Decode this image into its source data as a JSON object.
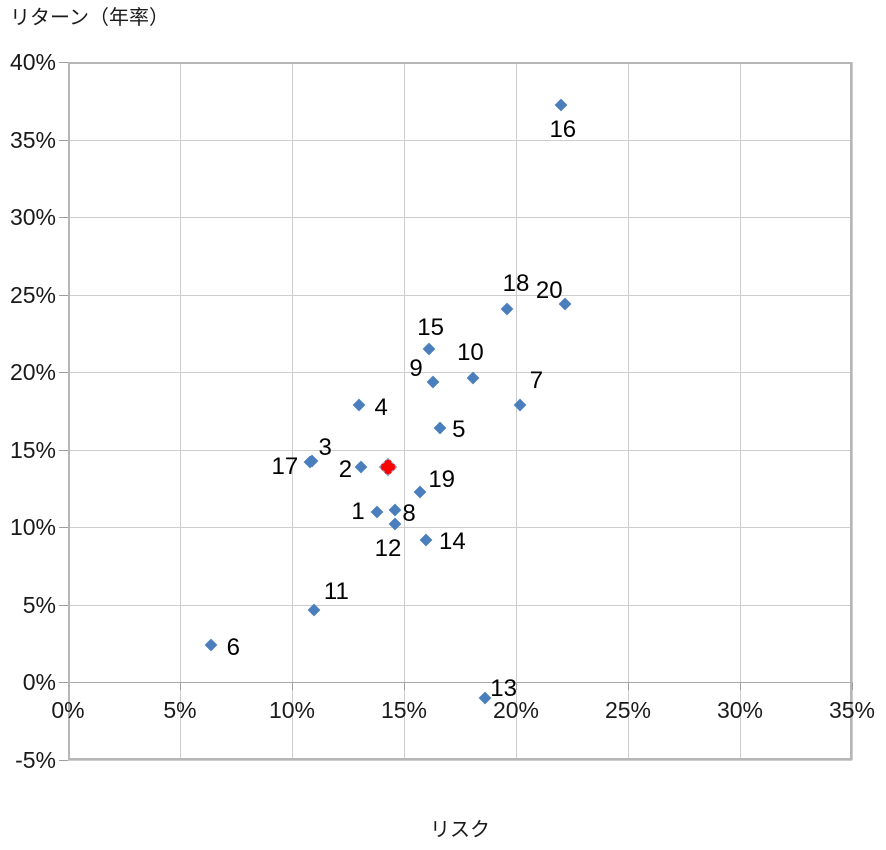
{
  "chart_data": {
    "type": "scatter",
    "xlabel": "リスク",
    "ylabel": "リターン（年率）",
    "xlim": [
      0,
      35
    ],
    "ylim": [
      -5,
      40
    ],
    "grid": true,
    "legend": "none",
    "x_ticks": [
      {
        "value": 0,
        "label": "0%"
      },
      {
        "value": 5,
        "label": "5%"
      },
      {
        "value": 10,
        "label": "10%"
      },
      {
        "value": 15,
        "label": "15%"
      },
      {
        "value": 20,
        "label": "20%"
      },
      {
        "value": 25,
        "label": "25%"
      },
      {
        "value": 30,
        "label": "30%"
      },
      {
        "value": 35,
        "label": "35%"
      }
    ],
    "y_ticks": [
      {
        "value": 40,
        "label": "40%"
      },
      {
        "value": 35,
        "label": "35%"
      },
      {
        "value": 30,
        "label": "30%"
      },
      {
        "value": 25,
        "label": "25%"
      },
      {
        "value": 20,
        "label": "20%"
      },
      {
        "value": 15,
        "label": "15%"
      },
      {
        "value": 10,
        "label": "10%"
      },
      {
        "value": 5,
        "label": "5%"
      },
      {
        "value": 0,
        "label": "0%"
      },
      {
        "value": -5,
        "label": "-5%"
      }
    ],
    "series": [
      {
        "id": "numbered-points",
        "color": "#4a7ebd",
        "marker": "diamond",
        "points": [
          {
            "label": "1",
            "x": 13.8,
            "y": 11.0,
            "label_dx": -19,
            "label_dy": 0
          },
          {
            "label": "2",
            "x": 13.1,
            "y": 13.9,
            "label_dx": -16,
            "label_dy": 3
          },
          {
            "label": "3",
            "x": 10.9,
            "y": 14.3,
            "label_dx": 13,
            "label_dy": -13
          },
          {
            "label": "4",
            "x": 13.0,
            "y": 17.9,
            "label_dx": 22,
            "label_dy": 3
          },
          {
            "label": "5",
            "x": 16.6,
            "y": 16.4,
            "label_dx": 19,
            "label_dy": 2
          },
          {
            "label": "6",
            "x": 6.4,
            "y": 2.4,
            "label_dx": 22,
            "label_dy": 3
          },
          {
            "label": "7",
            "x": 20.2,
            "y": 17.9,
            "label_dx": 16,
            "label_dy": -24
          },
          {
            "label": "8",
            "x": 14.6,
            "y": 11.1,
            "label_dx": 14,
            "label_dy": 4
          },
          {
            "label": "9",
            "x": 16.3,
            "y": 19.4,
            "label_dx": -17,
            "label_dy": -13
          },
          {
            "label": "10",
            "x": 18.1,
            "y": 19.6,
            "label_dx": -3,
            "label_dy": -25
          },
          {
            "label": "11",
            "x": 11.0,
            "y": 4.7,
            "label_dx": 22,
            "label_dy": -18
          },
          {
            "label": "12",
            "x": 14.6,
            "y": 10.2,
            "label_dx": -7,
            "label_dy": 25
          },
          {
            "label": "13",
            "x": 18.6,
            "y": -1.0,
            "label_dx": 19,
            "label_dy": -9
          },
          {
            "label": "14",
            "x": 16.0,
            "y": 9.2,
            "label_dx": 26,
            "label_dy": 2
          },
          {
            "label": "15",
            "x": 16.1,
            "y": 21.5,
            "label_dx": 2,
            "label_dy": -21
          },
          {
            "label": "16",
            "x": 22.0,
            "y": 37.2,
            "label_dx": 2,
            "label_dy": 25
          },
          {
            "label": "17",
            "x": 10.8,
            "y": 14.2,
            "label_dx": -25,
            "label_dy": 5
          },
          {
            "label": "18",
            "x": 19.6,
            "y": 24.1,
            "label_dx": 9,
            "label_dy": -25
          },
          {
            "label": "19",
            "x": 15.7,
            "y": 12.3,
            "label_dx": 22,
            "label_dy": -12
          },
          {
            "label": "20",
            "x": 22.2,
            "y": 24.4,
            "label_dx": -16,
            "label_dy": -13
          }
        ]
      },
      {
        "id": "highlight-point",
        "color": "#ff0000",
        "marker": "diamond",
        "points": [
          {
            "label": "",
            "x": 14.3,
            "y": 13.9,
            "label_dx": 0,
            "label_dy": 0
          }
        ]
      }
    ]
  },
  "colors": {
    "gridline": "#cdcdcd",
    "zero_axis_line": "#a8a8a8",
    "plot_border": "#b6b6b6",
    "tick_mark": "#9e9e9e",
    "text": "#1a1a1a",
    "point_blue": "#4a7ebd",
    "point_red": "#ff0000",
    "red_outline": "#8ea9db"
  }
}
